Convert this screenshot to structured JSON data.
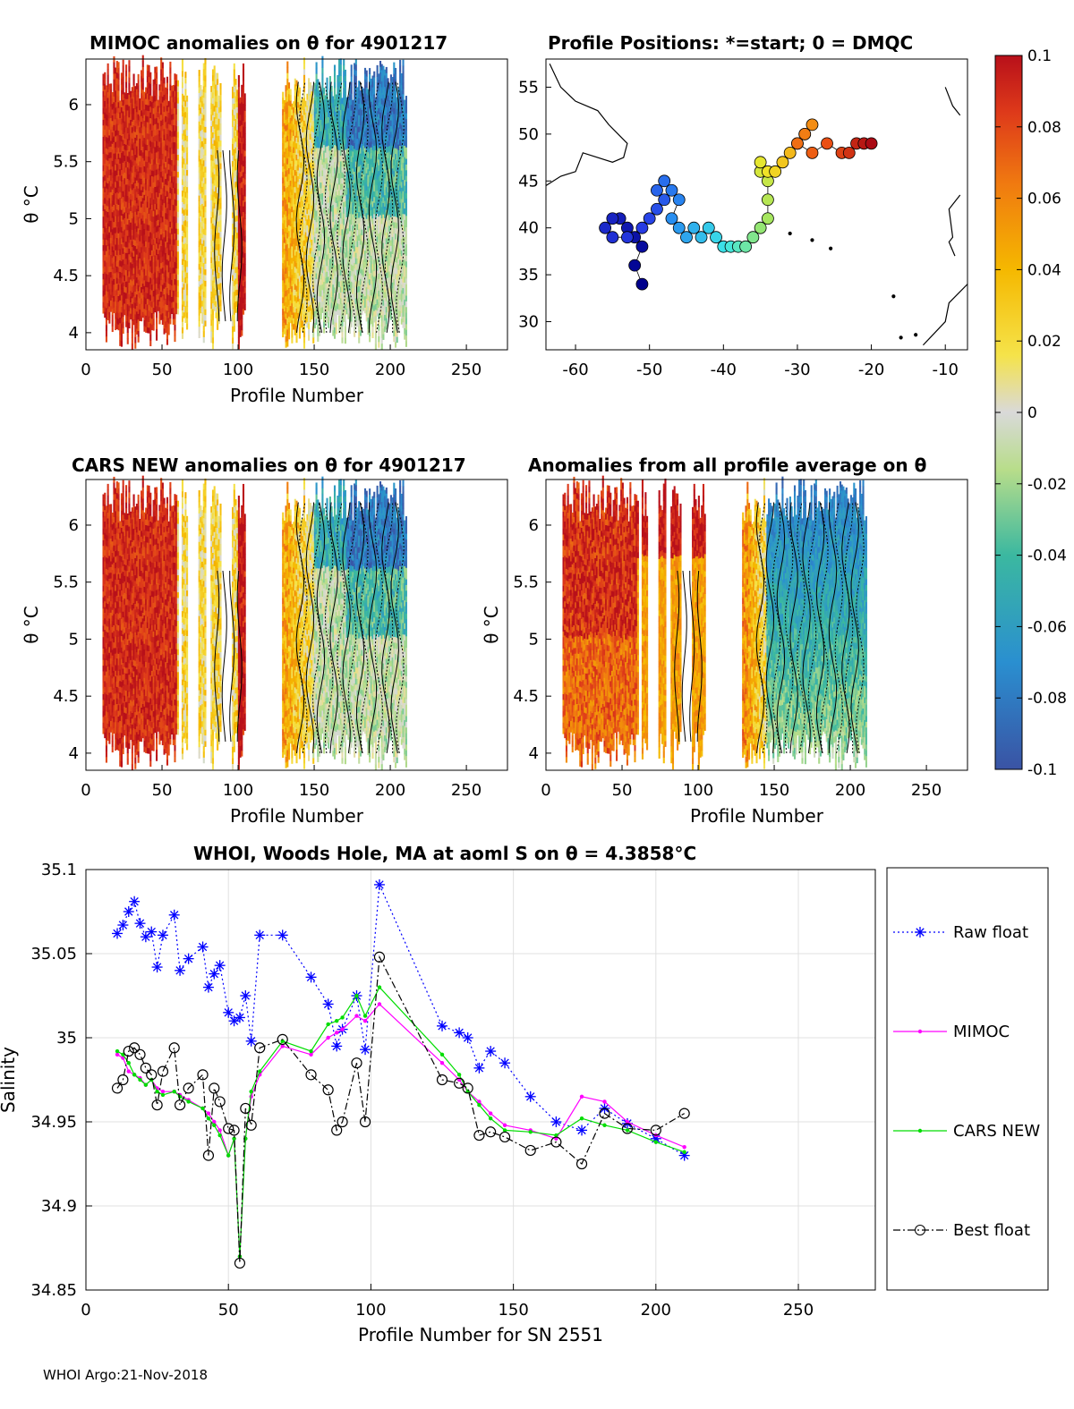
{
  "footer": "WHOI Argo:21-Nov-2018",
  "colors": {
    "raw": "#0000ff",
    "mimoc": "#ff00ff",
    "cars": "#00dd00",
    "best": "#000000",
    "grid": "#e0e0e0"
  },
  "panels": {
    "mimoc": {
      "title": "MIMOC anomalies on θ  for 4901217",
      "xlabel": "Profile Number",
      "ylabel": "θ °C",
      "xticks": [
        "0",
        "50",
        "100",
        "150",
        "200",
        "250"
      ],
      "yticks": [
        "4",
        "4.5",
        "5",
        "5.5",
        "6"
      ]
    },
    "positions": {
      "title": "Profile Positions: *=start; 0 = DMQC",
      "xticks": [
        "-60",
        "-50",
        "-40",
        "-30",
        "-20",
        "-10"
      ],
      "yticks": [
        "30",
        "35",
        "40",
        "45",
        "50",
        "55"
      ]
    },
    "cars": {
      "title": "CARS NEW anomalies on θ for 4901217",
      "xlabel": "Profile Number",
      "ylabel": "θ °C",
      "xticks": [
        "0",
        "50",
        "100",
        "150",
        "200",
        "250"
      ],
      "yticks": [
        "4",
        "4.5",
        "5",
        "5.5",
        "6"
      ]
    },
    "allavg": {
      "title": "Anomalies from all profile average on θ",
      "xlabel": "Profile Number",
      "ylabel": "θ °C",
      "xticks": [
        "0",
        "50",
        "100",
        "150",
        "200",
        "250"
      ],
      "yticks": [
        "4",
        "4.5",
        "5",
        "5.5",
        "6"
      ]
    },
    "colorbar": {
      "ticks": [
        "0.1",
        "0.08",
        "0.06",
        "0.04",
        "0.02",
        "0",
        "-0.02",
        "-0.04",
        "-0.06",
        "-0.08",
        "-0.1"
      ]
    }
  },
  "chart_data": [
    {
      "type": "heatmap",
      "title": "MIMOC anomalies on θ  for 4901217",
      "xlabel": "Profile Number",
      "ylabel": "θ °C",
      "xlim": [
        0,
        277
      ],
      "ylim": [
        3.85,
        6.4
      ],
      "clim": [
        -0.1,
        0.1
      ]
    },
    {
      "type": "scatter",
      "title": "Profile Positions: *=start; 0 = DMQC",
      "xlim": [
        -64,
        -7
      ],
      "ylim": [
        27,
        58
      ],
      "track_lon": [
        -51,
        -52,
        -51,
        -52,
        -53,
        -54,
        -55,
        -56,
        -55,
        -53,
        -51,
        -50,
        -49,
        -48,
        -49,
        -48,
        -47,
        -46,
        -47,
        -46,
        -45,
        -44,
        -43,
        -42,
        -41,
        -40,
        -39,
        -38,
        -37,
        -36,
        -35,
        -34,
        -34,
        -34,
        -35,
        -35,
        -34,
        -33,
        -32,
        -31,
        -30,
        -29,
        -28,
        -29,
        -30,
        -28,
        -26,
        -24,
        -23,
        -22,
        -21,
        -20
      ],
      "track_lat": [
        34,
        36,
        38,
        39,
        40,
        41,
        41,
        40,
        39,
        39,
        40,
        41,
        42,
        43,
        44,
        45,
        44,
        43,
        41,
        40,
        39,
        40,
        39,
        40,
        39,
        38,
        38,
        38,
        38,
        39,
        40,
        41,
        43,
        45,
        46,
        47,
        46,
        46,
        47,
        48,
        49,
        50,
        51,
        50,
        49,
        48,
        49,
        48,
        48,
        49,
        49,
        49
      ]
    },
    {
      "type": "heatmap",
      "title": "CARS NEW anomalies on θ for 4901217",
      "xlabel": "Profile Number",
      "ylabel": "θ °C",
      "xlim": [
        0,
        277
      ],
      "ylim": [
        3.85,
        6.4
      ],
      "clim": [
        -0.1,
        0.1
      ]
    },
    {
      "type": "heatmap",
      "title": "Anomalies from all profile average on θ",
      "xlabel": "Profile Number",
      "ylabel": "θ °C",
      "xlim": [
        0,
        277
      ],
      "ylim": [
        3.85,
        6.4
      ],
      "clim": [
        -0.1,
        0.1
      ]
    },
    {
      "type": "line",
      "title": "WHOI, Woods Hole, MA at aoml S on θ = 4.3858°C",
      "xlabel": "Profile Number for SN 2551",
      "ylabel": "Salinity",
      "xlim": [
        0,
        277
      ],
      "ylim": [
        34.85,
        35.1
      ],
      "xticks": [
        "0",
        "50",
        "100",
        "150",
        "200",
        "250"
      ],
      "yticks": [
        "34.85",
        "34.9",
        "34.95",
        "35",
        "35.05",
        "35.1"
      ],
      "legend": [
        "Raw float",
        "MIMOC",
        "CARS NEW",
        "Best float"
      ],
      "x": [
        11,
        13,
        15,
        17,
        19,
        21,
        23,
        25,
        27,
        31,
        33,
        36,
        41,
        43,
        45,
        47,
        50,
        52,
        54,
        56,
        58,
        61,
        69,
        79,
        85,
        88,
        90,
        95,
        98,
        103,
        125,
        131,
        134,
        138,
        142,
        147,
        156,
        165,
        174,
        182,
        190,
        200,
        210
      ],
      "series": [
        {
          "name": "Raw float",
          "values": [
            35.062,
            35.067,
            35.075,
            35.081,
            35.068,
            35.06,
            35.063,
            35.042,
            35.061,
            35.073,
            35.04,
            35.047,
            35.054,
            35.03,
            35.038,
            35.043,
            35.015,
            35.01,
            35.012,
            35.025,
            34.998,
            35.061,
            35.061,
            35.036,
            35.02,
            34.995,
            35.005,
            35.025,
            34.993,
            35.091,
            35.007,
            35.003,
            35.0,
            34.982,
            34.992,
            34.985,
            34.965,
            34.95,
            34.945,
            34.958,
            34.949,
            34.94,
            34.93
          ]
        },
        {
          "name": "MIMOC",
          "values": [
            34.99,
            34.988,
            34.98,
            34.978,
            34.976,
            34.972,
            34.975,
            34.97,
            34.968,
            34.968,
            34.966,
            34.963,
            34.958,
            34.955,
            34.95,
            34.945,
            34.93,
            34.94,
            34.87,
            34.94,
            34.965,
            34.978,
            34.995,
            34.99,
            35.0,
            35.003,
            35.005,
            35.013,
            35.01,
            35.02,
            34.985,
            34.975,
            34.968,
            34.962,
            34.955,
            34.948,
            34.945,
            34.94,
            34.965,
            34.962,
            34.95,
            34.942,
            34.935
          ]
        },
        {
          "name": "CARS NEW",
          "values": [
            34.992,
            34.99,
            34.985,
            34.978,
            34.975,
            34.972,
            34.975,
            34.968,
            34.966,
            34.968,
            34.965,
            34.962,
            34.958,
            34.952,
            34.948,
            34.942,
            34.93,
            34.94,
            34.87,
            34.94,
            34.968,
            34.98,
            34.998,
            34.992,
            35.008,
            35.01,
            35.012,
            35.025,
            35.013,
            35.03,
            34.99,
            34.978,
            34.968,
            34.96,
            34.952,
            34.945,
            34.944,
            34.942,
            34.952,
            34.948,
            34.945,
            34.938,
            34.932
          ]
        },
        {
          "name": "Best float",
          "values": [
            34.97,
            34.975,
            34.992,
            34.994,
            34.99,
            34.982,
            34.978,
            34.96,
            34.98,
            34.994,
            34.96,
            34.97,
            34.978,
            34.93,
            34.97,
            34.962,
            34.946,
            34.945,
            34.866,
            34.958,
            34.948,
            34.994,
            34.999,
            34.978,
            34.969,
            34.945,
            34.95,
            34.985,
            34.95,
            35.048,
            34.975,
            34.973,
            34.97,
            34.942,
            34.944,
            34.941,
            34.933,
            34.938,
            34.925,
            34.955,
            34.946,
            34.945,
            34.955
          ]
        }
      ]
    }
  ]
}
